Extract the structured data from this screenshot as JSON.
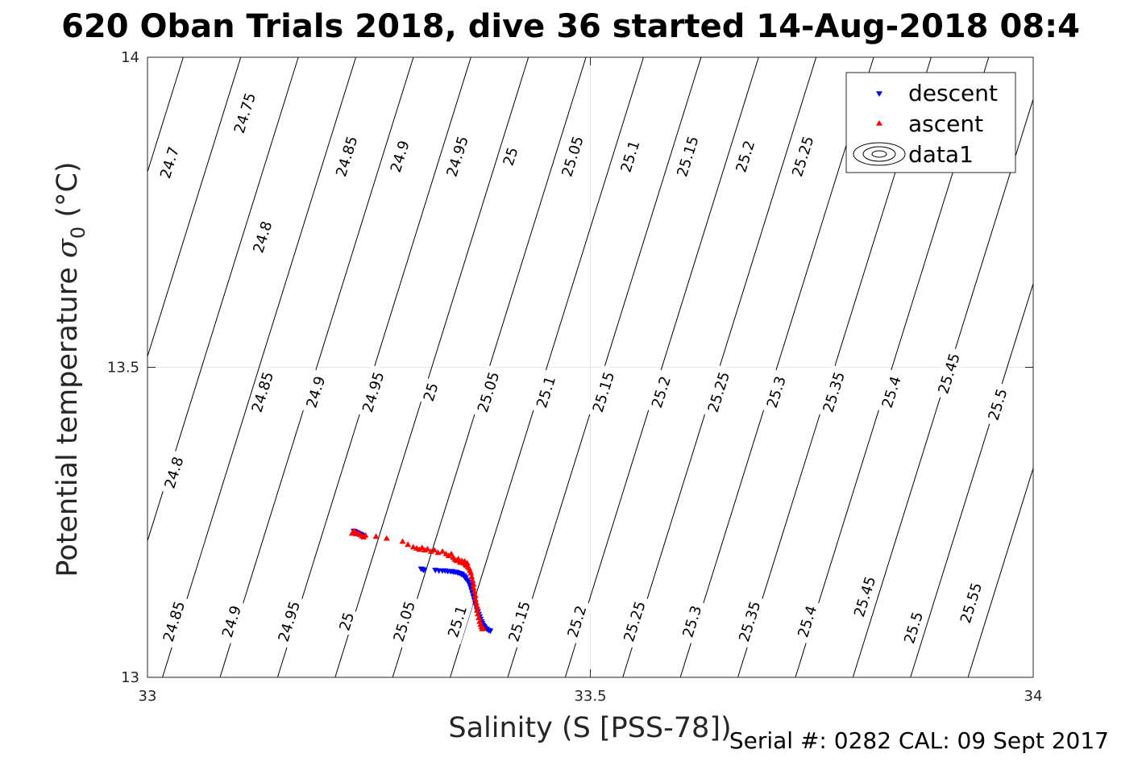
{
  "chart_data": {
    "type": "scatter",
    "title": "620 Oban Trials 2018, dive 36 started 14-Aug-2018 08:4",
    "xlabel": "Salinity (S [PSS-78])",
    "ylabel": "Potential temperature σ₀ (°C)",
    "ylabel_main": "Potential temperature ",
    "ylabel_sym": "σ",
    "ylabel_sub": "0",
    "ylabel_unit": " (°C)",
    "xlim": [
      33,
      34
    ],
    "ylim": [
      13,
      14
    ],
    "xticks": [
      "33",
      "33.5",
      "34"
    ],
    "yticks": [
      "13",
      "13.5",
      "14"
    ],
    "grid": true,
    "legend_position": "top-right",
    "legend": [
      "descent",
      "ascent",
      "data1"
    ],
    "contour_levels": [
      24.7,
      24.75,
      24.8,
      24.85,
      24.9,
      24.95,
      25.0,
      25.05,
      25.1,
      25.15,
      25.2,
      25.25,
      25.3,
      25.35,
      25.4,
      25.45,
      25.5,
      25.55
    ],
    "contour_labels": [
      {
        "text": "24.7",
        "x": 33.025,
        "y": 13.83
      },
      {
        "text": "24.75",
        "x": 33.11,
        "y": 13.91
      },
      {
        "text": "24.85",
        "x": 33.225,
        "y": 13.84
      },
      {
        "text": "24.9",
        "x": 33.285,
        "y": 13.84
      },
      {
        "text": "24.95",
        "x": 33.35,
        "y": 13.84
      },
      {
        "text": "25",
        "x": 33.41,
        "y": 13.84
      },
      {
        "text": "25.05",
        "x": 33.48,
        "y": 13.84
      },
      {
        "text": "25.1",
        "x": 33.545,
        "y": 13.84
      },
      {
        "text": "25.15",
        "x": 33.61,
        "y": 13.84
      },
      {
        "text": "25.2",
        "x": 33.675,
        "y": 13.84
      },
      {
        "text": "25.25",
        "x": 33.74,
        "y": 13.84
      },
      {
        "text": "25.",
        "x": 33.805,
        "y": 13.84
      },
      {
        "text": "25.",
        "x": 33.87,
        "y": 13.84
      },
      {
        "text": "25.",
        "x": 33.935,
        "y": 13.84
      },
      {
        "text": "24.8",
        "x": 33.13,
        "y": 13.71
      },
      {
        "text": "24.85",
        "x": 33.13,
        "y": 13.46
      },
      {
        "text": "24.9",
        "x": 33.19,
        "y": 13.46
      },
      {
        "text": "24.95",
        "x": 33.255,
        "y": 13.46
      },
      {
        "text": "25",
        "x": 33.32,
        "y": 13.46
      },
      {
        "text": "25.05",
        "x": 33.385,
        "y": 13.46
      },
      {
        "text": "25.1",
        "x": 33.45,
        "y": 13.46
      },
      {
        "text": "25.15",
        "x": 33.515,
        "y": 13.46
      },
      {
        "text": "25.2",
        "x": 33.58,
        "y": 13.46
      },
      {
        "text": "25.25",
        "x": 33.645,
        "y": 13.46
      },
      {
        "text": "25.3",
        "x": 33.71,
        "y": 13.46
      },
      {
        "text": "25.35",
        "x": 33.775,
        "y": 13.46
      },
      {
        "text": "25.4",
        "x": 33.84,
        "y": 13.46
      },
      {
        "text": "25.45",
        "x": 33.905,
        "y": 13.49
      },
      {
        "text": "25.5",
        "x": 33.96,
        "y": 13.44
      },
      {
        "text": "24.8",
        "x": 33.03,
        "y": 13.33
      },
      {
        "text": "24.85",
        "x": 33.03,
        "y": 13.09
      },
      {
        "text": "24.9",
        "x": 33.095,
        "y": 13.09
      },
      {
        "text": "24.95",
        "x": 33.16,
        "y": 13.09
      },
      {
        "text": "25",
        "x": 33.225,
        "y": 13.09
      },
      {
        "text": "25.05",
        "x": 33.29,
        "y": 13.09
      },
      {
        "text": "25.1",
        "x": 33.35,
        "y": 13.09
      },
      {
        "text": "25.15",
        "x": 33.42,
        "y": 13.09
      },
      {
        "text": "25.2",
        "x": 33.485,
        "y": 13.09
      },
      {
        "text": "25.25",
        "x": 33.55,
        "y": 13.09
      },
      {
        "text": "25.3",
        "x": 33.615,
        "y": 13.09
      },
      {
        "text": "25.35",
        "x": 33.68,
        "y": 13.09
      },
      {
        "text": "25.4",
        "x": 33.745,
        "y": 13.09
      },
      {
        "text": "25.45",
        "x": 33.81,
        "y": 13.13
      },
      {
        "text": "25.5",
        "x": 33.865,
        "y": 13.08
      },
      {
        "text": "25.55",
        "x": 33.93,
        "y": 13.12
      }
    ],
    "series": [
      {
        "name": "descent",
        "marker": "triangle-down",
        "color": "#0000ff",
        "x": [
          33.233,
          33.234,
          33.236,
          33.237,
          33.238,
          33.24,
          33.241,
          33.242,
          33.243,
          33.244,
          33.309,
          33.311,
          33.312,
          33.325,
          33.329,
          33.333,
          33.336,
          33.339,
          33.342,
          33.344,
          33.346,
          33.348,
          33.35,
          33.352,
          33.354,
          33.355,
          33.357,
          33.358,
          33.359,
          33.361,
          33.362,
          33.364,
          33.365,
          33.366,
          33.367,
          33.368,
          33.369,
          33.37,
          33.371,
          33.372,
          33.373,
          33.374,
          33.375,
          33.376,
          33.377,
          33.378,
          33.379,
          33.38,
          33.381,
          33.383,
          33.385,
          33.387
        ],
        "y": [
          13.236,
          13.235,
          13.234,
          13.233,
          13.232,
          13.231,
          13.23,
          13.229,
          13.228,
          13.227,
          13.175,
          13.174,
          13.173,
          13.173,
          13.172,
          13.172,
          13.172,
          13.171,
          13.171,
          13.171,
          13.17,
          13.17,
          13.169,
          13.168,
          13.167,
          13.166,
          13.164,
          13.162,
          13.16,
          13.157,
          13.154,
          13.15,
          13.145,
          13.14,
          13.135,
          13.13,
          13.125,
          13.12,
          13.115,
          13.11,
          13.106,
          13.102,
          13.098,
          13.094,
          13.09,
          13.087,
          13.084,
          13.082,
          13.08,
          13.078,
          13.076,
          13.075
        ]
      },
      {
        "name": "ascent",
        "marker": "triangle-up",
        "color": "#ff0000",
        "x": [
          33.231,
          33.232,
          33.233,
          33.234,
          33.235,
          33.236,
          33.238,
          33.24,
          33.242,
          33.244,
          33.246,
          33.258,
          33.27,
          33.288,
          33.294,
          33.3,
          33.304,
          33.307,
          33.31,
          33.313,
          33.316,
          33.32,
          33.324,
          33.328,
          33.333,
          33.337,
          33.34,
          33.343,
          33.345,
          33.347,
          33.349,
          33.351,
          33.353,
          33.355,
          33.357,
          33.358,
          33.359,
          33.36,
          33.361,
          33.362,
          33.363,
          33.364,
          33.365,
          33.366,
          33.367,
          33.368,
          33.368,
          33.369,
          33.37,
          33.37,
          33.371,
          33.372,
          33.372,
          33.373,
          33.374,
          33.375,
          33.376,
          33.377,
          33.378,
          33.379
        ],
        "y": [
          13.232,
          13.234,
          13.236,
          13.235,
          13.233,
          13.231,
          13.232,
          13.23,
          13.228,
          13.226,
          13.229,
          13.227,
          13.224,
          13.219,
          13.214,
          13.21,
          13.208,
          13.206,
          13.209,
          13.205,
          13.207,
          13.203,
          13.205,
          13.201,
          13.203,
          13.199,
          13.196,
          13.199,
          13.193,
          13.19,
          13.188,
          13.191,
          13.185,
          13.188,
          13.184,
          13.187,
          13.182,
          13.18,
          13.184,
          13.178,
          13.176,
          13.172,
          13.168,
          13.162,
          13.156,
          13.15,
          13.144,
          13.138,
          13.132,
          13.126,
          13.12,
          13.114,
          13.108,
          13.102,
          13.096,
          13.09,
          13.085,
          13.081,
          13.078,
          13.079
        ]
      }
    ]
  },
  "footer": "Serial #: 0282  CAL: 09 Sept 2017"
}
